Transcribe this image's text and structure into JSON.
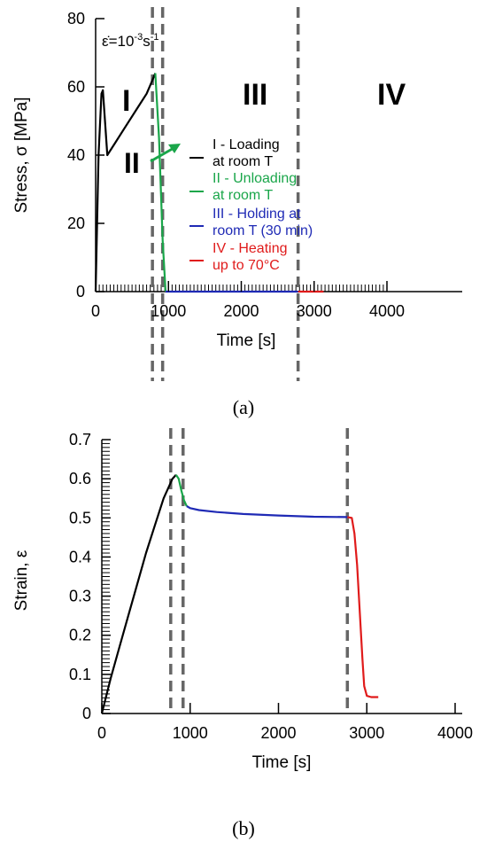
{
  "chart_data": [
    {
      "type": "line",
      "caption": "(a)",
      "xlabel": "Time  [s]",
      "ylabel": "Stress, σ  [MPa]",
      "xlim": [
        0,
        4000
      ],
      "ylim": [
        0,
        80
      ],
      "xticks": [
        "0",
        "1000",
        "2000",
        "3000",
        "4000"
      ],
      "yticks": [
        "0",
        "20",
        "40",
        "60",
        "80"
      ],
      "rate_label": {
        "base": "ε̇=10",
        "exp1": "-3",
        "mid": "s",
        "exp2": "-1"
      },
      "phase_labels": [
        {
          "text": "I",
          "color": "#000000"
        },
        {
          "text": "II",
          "color": "#1aa64a"
        },
        {
          "text": "III",
          "color": "#1f2ab5"
        },
        {
          "text": "IV",
          "color": "#e01b1b"
        }
      ],
      "dividers_x": [
        780,
        920,
        2780
      ],
      "legend": [
        {
          "line1": "I - Loading",
          "line2": "at room T",
          "color": "#000000"
        },
        {
          "line1": "II - Unloading",
          "line2": "at room T",
          "color": "#1aa64a"
        },
        {
          "line1": "III - Holding at",
          "line2": "room T (30 min)",
          "color": "#1f2ab5"
        },
        {
          "line1": "IV - Heating",
          "line2": "up to 70°C",
          "color": "#e01b1b"
        }
      ],
      "series": [
        {
          "color": "#000000",
          "x": [
            0,
            40,
            80,
            100,
            160,
            250,
            400,
            550,
            700,
            780,
            820
          ],
          "y": [
            0,
            40,
            58,
            59,
            40,
            43,
            48,
            53,
            58,
            62,
            64
          ]
        },
        {
          "color": "#1aa64a",
          "x": [
            820,
            870,
            920,
            960
          ],
          "y": [
            64,
            45,
            15,
            0
          ]
        },
        {
          "color": "#1f2ab5",
          "x": [
            960,
            2780
          ],
          "y": [
            0,
            0
          ]
        },
        {
          "color": "#e01b1b",
          "x": [
            2780,
            3130
          ],
          "y": [
            0,
            0
          ]
        }
      ]
    },
    {
      "type": "line",
      "caption": "(b)",
      "xlabel": "Time  [s]",
      "ylabel": "Strain, ε",
      "xlim": [
        0,
        4000
      ],
      "ylim": [
        0,
        0.7
      ],
      "xticks": [
        "0",
        "1000",
        "2000",
        "3000",
        "4000"
      ],
      "yticks": [
        "0",
        "0.1",
        "0.2",
        "0.3",
        "0.4",
        "0.5",
        "0.6",
        "0.7"
      ],
      "dividers_x": [
        780,
        920,
        2780
      ],
      "series": [
        {
          "color": "#000000",
          "x": [
            0,
            100,
            200,
            300,
            400,
            500,
            600,
            700,
            800,
            840
          ],
          "y": [
            0,
            0.09,
            0.17,
            0.25,
            0.33,
            0.41,
            0.48,
            0.55,
            0.6,
            0.61
          ]
        },
        {
          "color": "#1aa64a",
          "x": [
            840,
            870,
            900,
            930,
            960
          ],
          "y": [
            0.61,
            0.6,
            0.57,
            0.545,
            0.53
          ]
        },
        {
          "color": "#1f2ab5",
          "x": [
            960,
            1000,
            1100,
            1300,
            1600,
            2000,
            2400,
            2780
          ],
          "y": [
            0.53,
            0.525,
            0.52,
            0.515,
            0.51,
            0.506,
            0.503,
            0.502
          ]
        },
        {
          "color": "#e01b1b",
          "x": [
            2780,
            2830,
            2860,
            2890,
            2920,
            2950,
            2970,
            3000,
            3050,
            3130
          ],
          "y": [
            0.502,
            0.5,
            0.46,
            0.38,
            0.26,
            0.14,
            0.07,
            0.045,
            0.042,
            0.042
          ]
        }
      ]
    }
  ]
}
